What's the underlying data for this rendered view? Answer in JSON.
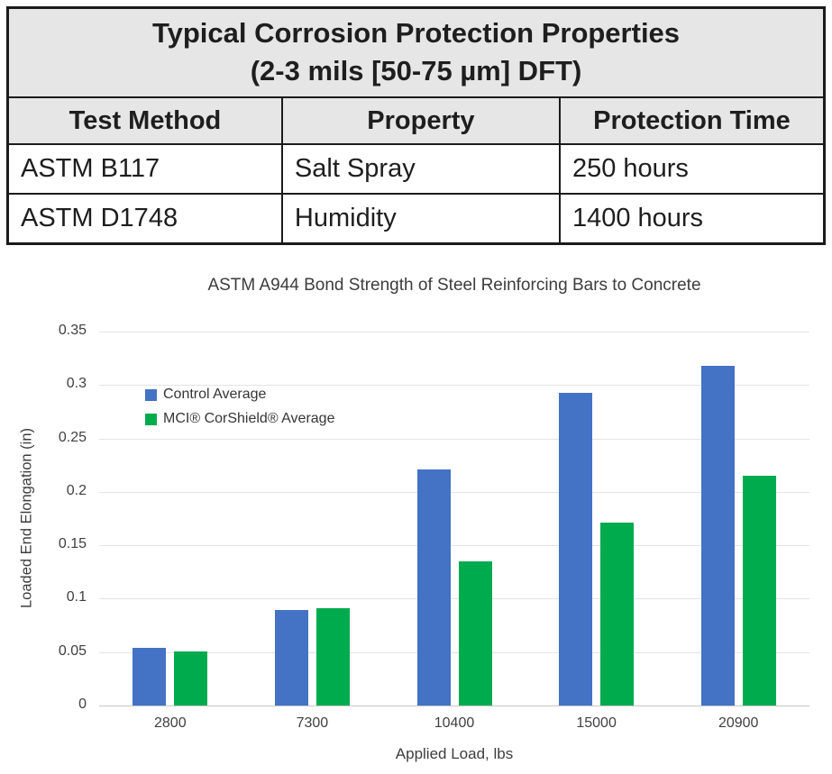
{
  "table": {
    "title_line1": "Typical Corrosion Protection Properties",
    "title_line2": "(2-3 mils [50-75 µm] DFT)",
    "headers": [
      "Test Method",
      "Property",
      "Protection Time"
    ],
    "rows": [
      [
        "ASTM B117",
        "Salt Spray",
        "250 hours"
      ],
      [
        "ASTM D1748",
        "Humidity",
        "1400 hours"
      ]
    ]
  },
  "chart_data": {
    "type": "bar",
    "title": "ASTM A944 Bond Strength of Steel Reinforcing Bars to Concrete",
    "xlabel": "Applied Load, lbs",
    "ylabel": "Loaded End Elongation (in)",
    "categories": [
      "2800",
      "7300",
      "10400",
      "15000",
      "20900"
    ],
    "series": [
      {
        "name": "Control Average",
        "key": "control",
        "color": "#4472C4",
        "values": [
          0.054,
          0.089,
          0.221,
          0.293,
          0.318
        ]
      },
      {
        "name": "MCI® CorShield® Average",
        "key": "mci-corshield",
        "color": "#00AB4E",
        "values": [
          0.051,
          0.091,
          0.135,
          0.171,
          0.215
        ]
      }
    ],
    "ylim": [
      0,
      0.35
    ],
    "ytick_step": 0.05,
    "ytick_labels": [
      "0",
      "0.05",
      "0.1",
      "0.15",
      "0.2",
      "0.25",
      "0.3",
      "0.35"
    ],
    "grid": true,
    "legend_position": "inside-top-left",
    "colors": {
      "gridline": "#e3e3e3",
      "axis_line": "#c5c5c5",
      "text": "#404040"
    }
  }
}
